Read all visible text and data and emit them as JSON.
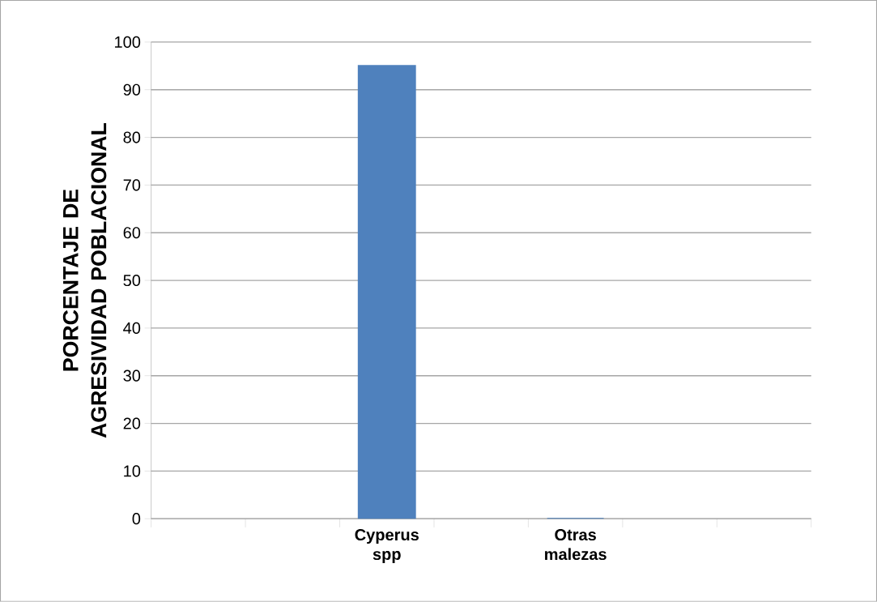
{
  "chart_data": {
    "type": "bar",
    "ylabel": "PORCENTAJE DE AGRESIVIDAD POBLACIONAL",
    "categories": [
      null,
      null,
      "Cyperus spp",
      null,
      "Otras malezas",
      null,
      null
    ],
    "values": [
      null,
      null,
      95,
      null,
      0,
      null,
      null
    ],
    "color": "#4f81bd",
    "ylim": [
      0,
      100
    ],
    "yticks": [
      0,
      10,
      20,
      30,
      40,
      50,
      60,
      70,
      80,
      90,
      100
    ],
    "grid": "y"
  }
}
